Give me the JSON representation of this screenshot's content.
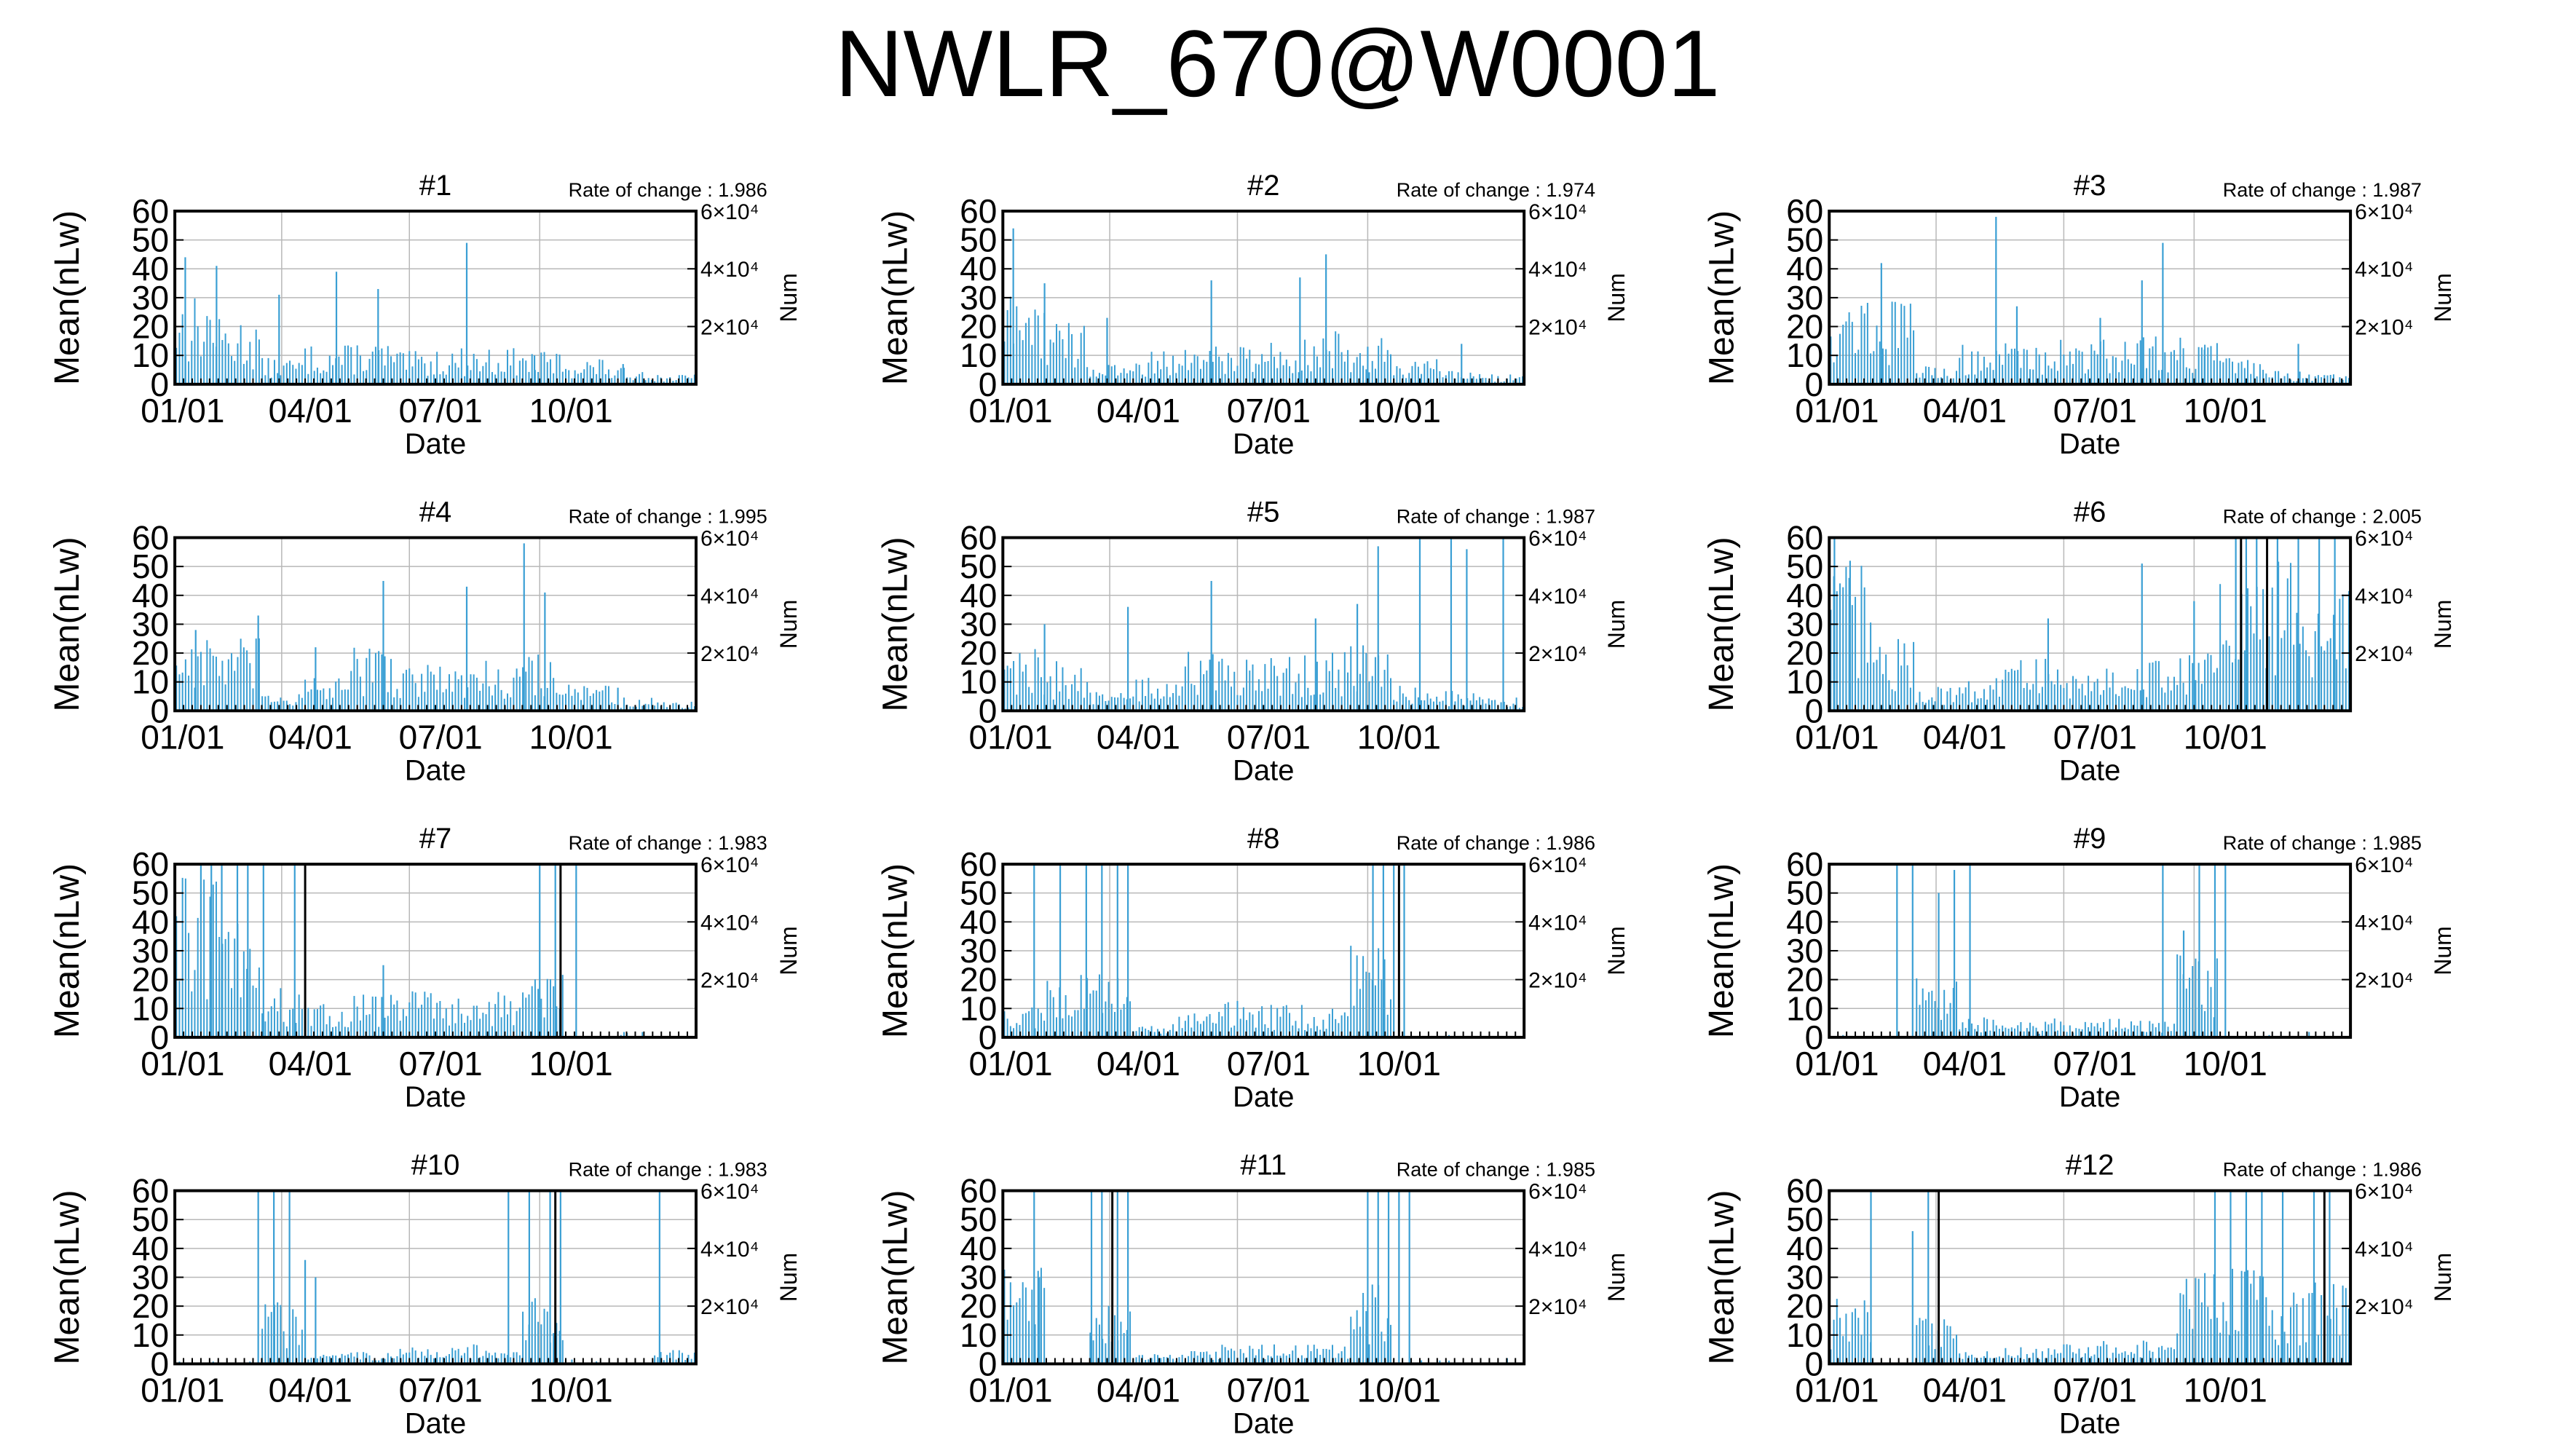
{
  "title": "NWLR_670@W0001",
  "colors": {
    "series": "#3a9fd4",
    "grid": "#b8b8b8",
    "frame": "#000000",
    "spike": "#000000"
  },
  "chart_data": [
    {
      "type": "bar",
      "panel": "#1",
      "rate_label": "Rate of change : 1.986",
      "ylabel": "Mean(nLw)",
      "y2label": "Num",
      "xlabel": "Date",
      "ylim": [
        0,
        60
      ],
      "yticks": [
        0,
        10,
        20,
        30,
        40,
        50,
        60
      ],
      "y2ticks": [
        "2×10⁴",
        "4×10⁴",
        "6×10⁴"
      ],
      "xticks": [
        "01/01",
        "04/01",
        "07/01",
        "10/01"
      ],
      "grid": true,
      "profile": [
        27,
        20,
        8,
        12,
        13,
        10,
        11,
        11,
        10,
        8,
        5,
        3
      ],
      "peaks": [
        [
          2,
          44
        ],
        [
          8,
          41
        ],
        [
          20,
          31
        ],
        [
          31,
          39
        ],
        [
          39,
          33
        ],
        [
          56,
          49
        ],
        [
          69,
          10
        ],
        [
          86,
          7
        ]
      ],
      "spikes": []
    },
    {
      "type": "bar",
      "panel": "#2",
      "rate_label": "Rate of change : 1.974",
      "ylabel": "Mean(nLw)",
      "y2label": "Num",
      "xlabel": "Date",
      "ylim": [
        0,
        60
      ],
      "yticks": [
        0,
        10,
        20,
        30,
        40,
        50,
        60
      ],
      "y2ticks": [
        "2×10⁴",
        "4×10⁴",
        "6×10⁴"
      ],
      "xticks": [
        "01/01",
        "04/01",
        "07/01",
        "10/01"
      ],
      "grid": true,
      "profile": [
        28,
        20,
        6,
        10,
        12,
        13,
        14,
        16,
        15,
        8,
        4,
        3
      ],
      "peaks": [
        [
          2,
          54
        ],
        [
          8,
          35
        ],
        [
          20,
          23
        ],
        [
          40,
          36
        ],
        [
          57,
          37
        ],
        [
          62,
          45
        ],
        [
          70,
          13
        ],
        [
          88,
          14
        ]
      ],
      "spikes": []
    },
    {
      "type": "bar",
      "panel": "#3",
      "rate_label": "Rate of change : 1.987",
      "ylabel": "Mean(nLw)",
      "y2label": "Num",
      "xlabel": "Date",
      "ylim": [
        0,
        60
      ],
      "yticks": [
        0,
        10,
        20,
        30,
        40,
        50,
        60
      ],
      "y2ticks": [
        "2×10⁴",
        "4×10⁴",
        "6×10⁴"
      ],
      "xticks": [
        "01/01",
        "04/01",
        "07/01",
        "10/01"
      ],
      "grid": true,
      "profile": [
        28,
        26,
        6,
        12,
        13,
        14,
        14,
        16,
        15,
        8,
        4,
        3
      ],
      "peaks": [
        [
          10,
          42
        ],
        [
          32,
          58
        ],
        [
          36,
          27
        ],
        [
          52,
          23
        ],
        [
          60,
          36
        ],
        [
          64,
          49
        ],
        [
          72,
          12
        ],
        [
          90,
          14
        ]
      ],
      "spikes": []
    },
    {
      "type": "bar",
      "panel": "#4",
      "rate_label": "Rate of change : 1.995",
      "ylabel": "Mean(nLw)",
      "y2label": "Num",
      "xlabel": "Date",
      "ylim": [
        0,
        60
      ],
      "yticks": [
        0,
        10,
        20,
        30,
        40,
        50,
        60
      ],
      "y2ticks": [
        "2×10⁴",
        "4×10⁴",
        "6×10⁴"
      ],
      "xticks": [
        "01/01",
        "04/01",
        "07/01",
        "10/01"
      ],
      "grid": true,
      "profile": [
        24,
        22,
        6,
        10,
        20,
        15,
        14,
        16,
        18,
        8,
        4,
        3
      ],
      "peaks": [
        [
          4,
          28
        ],
        [
          16,
          33
        ],
        [
          27,
          22
        ],
        [
          40,
          45
        ],
        [
          56,
          43
        ],
        [
          67,
          58
        ],
        [
          71,
          41
        ],
        [
          85,
          8
        ]
      ],
      "spikes": []
    },
    {
      "type": "bar",
      "panel": "#5",
      "rate_label": "Rate of change : 1.987",
      "ylabel": "Mean(nLw)",
      "y2label": "Num",
      "xlabel": "Date",
      "ylim": [
        0,
        60
      ],
      "yticks": [
        0,
        10,
        20,
        30,
        40,
        50,
        60
      ],
      "y2ticks": [
        "2×10⁴",
        "4×10⁴",
        "6×10⁴"
      ],
      "xticks": [
        "01/01",
        "04/01",
        "07/01",
        "10/01"
      ],
      "grid": true,
      "profile": [
        20,
        15,
        6,
        10,
        18,
        17,
        17,
        18,
        20,
        8,
        6,
        4
      ],
      "peaks": [
        [
          8,
          30
        ],
        [
          24,
          36
        ],
        [
          40,
          45
        ],
        [
          60,
          32
        ],
        [
          68,
          37
        ],
        [
          72,
          57
        ],
        [
          80,
          60
        ],
        [
          86,
          60
        ],
        [
          89,
          56
        ],
        [
          96,
          60
        ]
      ],
      "spikes": []
    },
    {
      "type": "bar",
      "panel": "#6",
      "rate_label": "Rate of change : 2.005",
      "ylabel": "Mean(nLw)",
      "y2label": "Num",
      "xlabel": "Date",
      "ylim": [
        0,
        60
      ],
      "yticks": [
        0,
        10,
        20,
        30,
        40,
        50,
        60
      ],
      "y2ticks": [
        "2×10⁴",
        "4×10⁴",
        "6×10⁴"
      ],
      "xticks": [
        "01/01",
        "04/01",
        "07/01",
        "10/01"
      ],
      "grid": true,
      "profile": [
        45,
        22,
        8,
        10,
        18,
        14,
        14,
        16,
        18,
        40,
        45,
        40
      ],
      "peaks": [
        [
          1,
          60
        ],
        [
          4,
          52
        ],
        [
          42,
          32
        ],
        [
          60,
          51
        ],
        [
          70,
          38
        ],
        [
          78,
          60
        ],
        [
          80,
          60
        ],
        [
          82,
          60
        ],
        [
          86,
          60
        ],
        [
          90,
          60
        ],
        [
          94,
          60
        ],
        [
          97,
          60
        ]
      ],
      "spikes": [
        [
          79,
          60
        ],
        [
          84,
          60
        ]
      ]
    },
    {
      "type": "bar",
      "panel": "#7",
      "rate_label": "Rate of change : 1.983",
      "ylabel": "Mean(nLw)",
      "y2label": "Num",
      "xlabel": "Date",
      "ylim": [
        0,
        60
      ],
      "yticks": [
        0,
        10,
        20,
        30,
        40,
        50,
        60
      ],
      "y2ticks": [
        "2×10⁴",
        "4×10⁴",
        "6×10⁴"
      ],
      "xticks": [
        "01/01",
        "04/01",
        "07/01",
        "10/01"
      ],
      "grid": true,
      "profile": [
        50,
        40,
        15,
        10,
        14,
        15,
        13,
        14,
        20,
        0,
        0,
        0
      ],
      "peaks": [
        [
          5,
          60
        ],
        [
          7,
          60
        ],
        [
          9,
          60
        ],
        [
          12,
          60
        ],
        [
          14,
          60
        ],
        [
          17,
          60
        ],
        [
          23,
          60
        ],
        [
          25,
          60
        ],
        [
          40,
          25
        ],
        [
          70,
          60
        ],
        [
          73,
          60
        ],
        [
          77,
          60
        ]
      ],
      "spikes": [
        [
          25,
          60
        ],
        [
          74,
          60
        ]
      ]
    },
    {
      "type": "bar",
      "panel": "#8",
      "rate_label": "Rate of change : 1.986",
      "ylabel": "Mean(nLw)",
      "y2label": "Num",
      "xlabel": "Date",
      "ylim": [
        0,
        60
      ],
      "yticks": [
        0,
        10,
        20,
        30,
        40,
        50,
        60
      ],
      "y2ticks": [
        "2×10⁴",
        "4×10⁴",
        "6×10⁴"
      ],
      "xticks": [
        "01/01",
        "04/01",
        "07/01",
        "10/01"
      ],
      "grid": true,
      "profile": [
        10,
        20,
        20,
        4,
        8,
        12,
        10,
        10,
        30,
        0,
        0,
        0
      ],
      "peaks": [
        [
          6,
          60
        ],
        [
          11,
          60
        ],
        [
          16,
          60
        ],
        [
          19,
          60
        ],
        [
          22,
          60
        ],
        [
          24,
          60
        ],
        [
          71,
          60
        ],
        [
          73,
          60
        ],
        [
          75,
          60
        ],
        [
          77,
          60
        ]
      ],
      "spikes": [
        [
          76,
          60
        ]
      ]
    },
    {
      "type": "bar",
      "panel": "#9",
      "rate_label": "Rate of change : 1.985",
      "ylabel": "Mean(nLw)",
      "y2label": "Num",
      "xlabel": "Date",
      "ylim": [
        0,
        60
      ],
      "yticks": [
        0,
        10,
        20,
        30,
        40,
        50,
        60
      ],
      "y2ticks": [
        "2×10⁴",
        "4×10⁴",
        "6×10⁴"
      ],
      "xticks": [
        "01/01",
        "04/01",
        "07/01",
        "10/01"
      ],
      "grid": true,
      "profile": [
        0,
        0,
        20,
        6,
        5,
        6,
        6,
        5,
        25,
        0,
        0,
        0
      ],
      "peaks": [
        [
          13,
          60
        ],
        [
          16,
          60
        ],
        [
          21,
          50
        ],
        [
          24,
          58
        ],
        [
          27,
          60
        ],
        [
          64,
          60
        ],
        [
          68,
          37
        ],
        [
          71,
          60
        ],
        [
          74,
          60
        ],
        [
          76,
          60
        ]
      ],
      "spikes": []
    },
    {
      "type": "bar",
      "panel": "#10",
      "rate_label": "Rate of change : 1.983",
      "ylabel": "Mean(nLw)",
      "y2label": "Num",
      "xlabel": "Date",
      "ylim": [
        0,
        60
      ],
      "yticks": [
        0,
        10,
        20,
        30,
        40,
        50,
        60
      ],
      "y2ticks": [
        "2×10⁴",
        "4×10⁴",
        "6×10⁴"
      ],
      "xticks": [
        "01/01",
        "04/01",
        "07/01",
        "10/01"
      ],
      "grid": true,
      "profile": [
        0,
        0,
        20,
        3,
        4,
        5,
        6,
        5,
        20,
        0,
        0,
        5
      ],
      "peaks": [
        [
          16,
          60
        ],
        [
          19,
          60
        ],
        [
          22,
          60
        ],
        [
          25,
          36
        ],
        [
          27,
          30
        ],
        [
          64,
          60
        ],
        [
          68,
          60
        ],
        [
          72,
          60
        ],
        [
          74,
          60
        ],
        [
          93,
          60
        ]
      ],
      "spikes": [
        [
          73,
          60
        ]
      ]
    },
    {
      "type": "bar",
      "panel": "#11",
      "rate_label": "Rate of change : 1.985",
      "ylabel": "Mean(nLw)",
      "y2label": "Num",
      "xlabel": "Date",
      "ylim": [
        0,
        60
      ],
      "yticks": [
        0,
        10,
        20,
        30,
        40,
        50,
        60
      ],
      "y2ticks": [
        "2×10⁴",
        "4×10⁴",
        "6×10⁴"
      ],
      "xticks": [
        "01/01",
        "04/01",
        "07/01",
        "10/01"
      ],
      "grid": true,
      "profile": [
        30,
        0,
        20,
        3,
        4,
        6,
        6,
        6,
        25,
        0,
        0,
        0
      ],
      "peaks": [
        [
          6,
          60
        ],
        [
          7,
          30
        ],
        [
          17,
          60
        ],
        [
          19,
          60
        ],
        [
          22,
          60
        ],
        [
          24,
          60
        ],
        [
          70,
          60
        ],
        [
          72,
          60
        ],
        [
          74,
          60
        ],
        [
          76,
          60
        ],
        [
          78,
          60
        ]
      ],
      "spikes": [
        [
          21,
          60
        ]
      ]
    },
    {
      "type": "bar",
      "panel": "#12",
      "rate_label": "Rate of change : 1.986",
      "ylabel": "Mean(nLw)",
      "y2label": "Num",
      "xlabel": "Date",
      "ylim": [
        0,
        60
      ],
      "yticks": [
        0,
        10,
        20,
        30,
        40,
        50,
        60
      ],
      "y2ticks": [
        "2×10⁴",
        "4×10⁴",
        "6×10⁴"
      ],
      "xticks": [
        "01/01",
        "04/01",
        "07/01",
        "10/01"
      ],
      "grid": true,
      "profile": [
        20,
        0,
        20,
        4,
        5,
        6,
        7,
        7,
        28,
        30,
        25,
        25
      ],
      "peaks": [
        [
          8,
          60
        ],
        [
          16,
          46
        ],
        [
          19,
          60
        ],
        [
          21,
          58
        ],
        [
          74,
          60
        ],
        [
          77,
          60
        ],
        [
          80,
          60
        ],
        [
          83,
          60
        ],
        [
          87,
          60
        ],
        [
          93,
          60
        ],
        [
          96,
          60
        ]
      ],
      "spikes": [
        [
          21,
          60
        ],
        [
          95,
          60
        ]
      ]
    }
  ]
}
